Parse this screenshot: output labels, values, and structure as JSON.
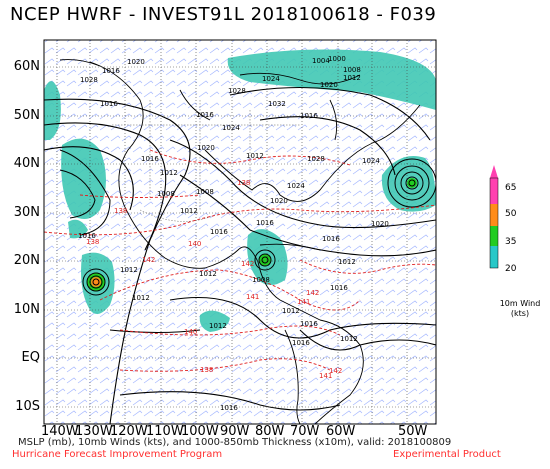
{
  "title": "NCEP HWRF - INVEST91L 2018100618 - F039",
  "lat_labels": [
    "60N",
    "50N",
    "40N",
    "30N",
    "20N",
    "10N",
    "EQ",
    "10S"
  ],
  "lon_labels": [
    "140W",
    "130W",
    "120W",
    "110W",
    "100W",
    "90W",
    "80W",
    "70W",
    "60W",
    "50W"
  ],
  "footer": {
    "main": "MSLP (mb), 10mb Winds (kts), and 1000-850mb Thickness (x10m), valid: 2018100809",
    "left": "Hurricane Forecast Improvement Program",
    "right": "Experimental Product"
  },
  "legend": {
    "ticks": [
      "65",
      "50",
      "35",
      "20"
    ],
    "title_line1": "10m Wind",
    "title_line2": "(kts)",
    "colors": [
      "#ff40b0",
      "#ff8c1a",
      "#22cc22",
      "#28c8c8"
    ]
  },
  "pressure_labels": [
    "1004",
    "1008",
    "1000",
    "1012",
    "1020",
    "1024",
    "1028",
    "1028",
    "1032",
    "1024",
    "1020",
    "1016",
    "1016",
    "1012",
    "1020",
    "1024",
    "1016",
    "1016",
    "1012",
    "1008",
    "1008",
    "1012",
    "1016",
    "1020",
    "1028",
    "1024",
    "1016",
    "1020",
    "1016",
    "1012",
    "1008",
    "1012",
    "1016",
    "1012",
    "1012",
    "1016",
    "1012",
    "1016",
    "1012",
    "1016",
    "1016",
    "1012",
    "1016"
  ],
  "thickness_labels": [
    "138",
    "138",
    "140",
    "140",
    "141",
    "142",
    "142",
    "138",
    "138",
    "142",
    "141",
    "141",
    "142"
  ],
  "colors": {
    "wind_shade": "#40c8b4",
    "isobar": "#000000",
    "thickness": "#e02020",
    "barb": "#3050ff",
    "coast": "#000000"
  }
}
